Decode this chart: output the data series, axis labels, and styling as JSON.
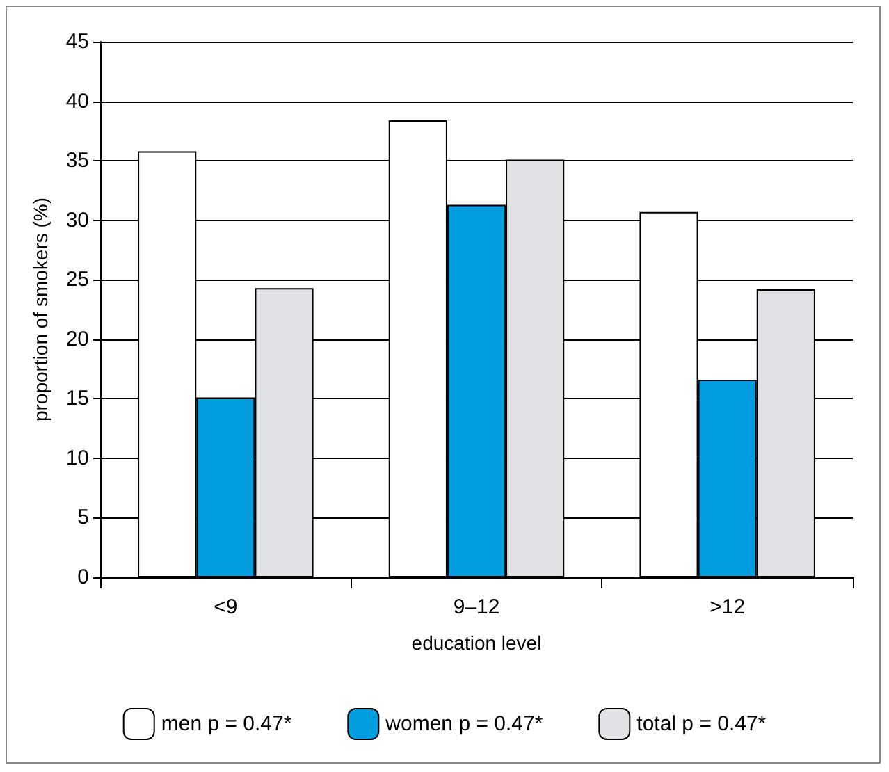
{
  "chart_data": {
    "type": "bar",
    "xlabel": "education level",
    "ylabel": "proportion of smokers (%)",
    "categories": [
      "<9",
      "9–12",
      ">12"
    ],
    "series": [
      {
        "name": "men p = 0.47*",
        "color": "#ffffff",
        "values": [
          35.8,
          38.4,
          30.7
        ]
      },
      {
        "name": "women p = 0.47*",
        "color": "#009ddf",
        "values": [
          15.1,
          31.3,
          16.6
        ]
      },
      {
        "name": "total p = 0.47*",
        "color": "#e1e2e4",
        "values": [
          24.3,
          35.1,
          24.2
        ]
      }
    ],
    "ylim": [
      0,
      45
    ],
    "yticks": [
      0,
      5,
      10,
      15,
      20,
      25,
      30,
      35,
      40,
      45
    ],
    "grid": "y",
    "legend": "bottom"
  }
}
